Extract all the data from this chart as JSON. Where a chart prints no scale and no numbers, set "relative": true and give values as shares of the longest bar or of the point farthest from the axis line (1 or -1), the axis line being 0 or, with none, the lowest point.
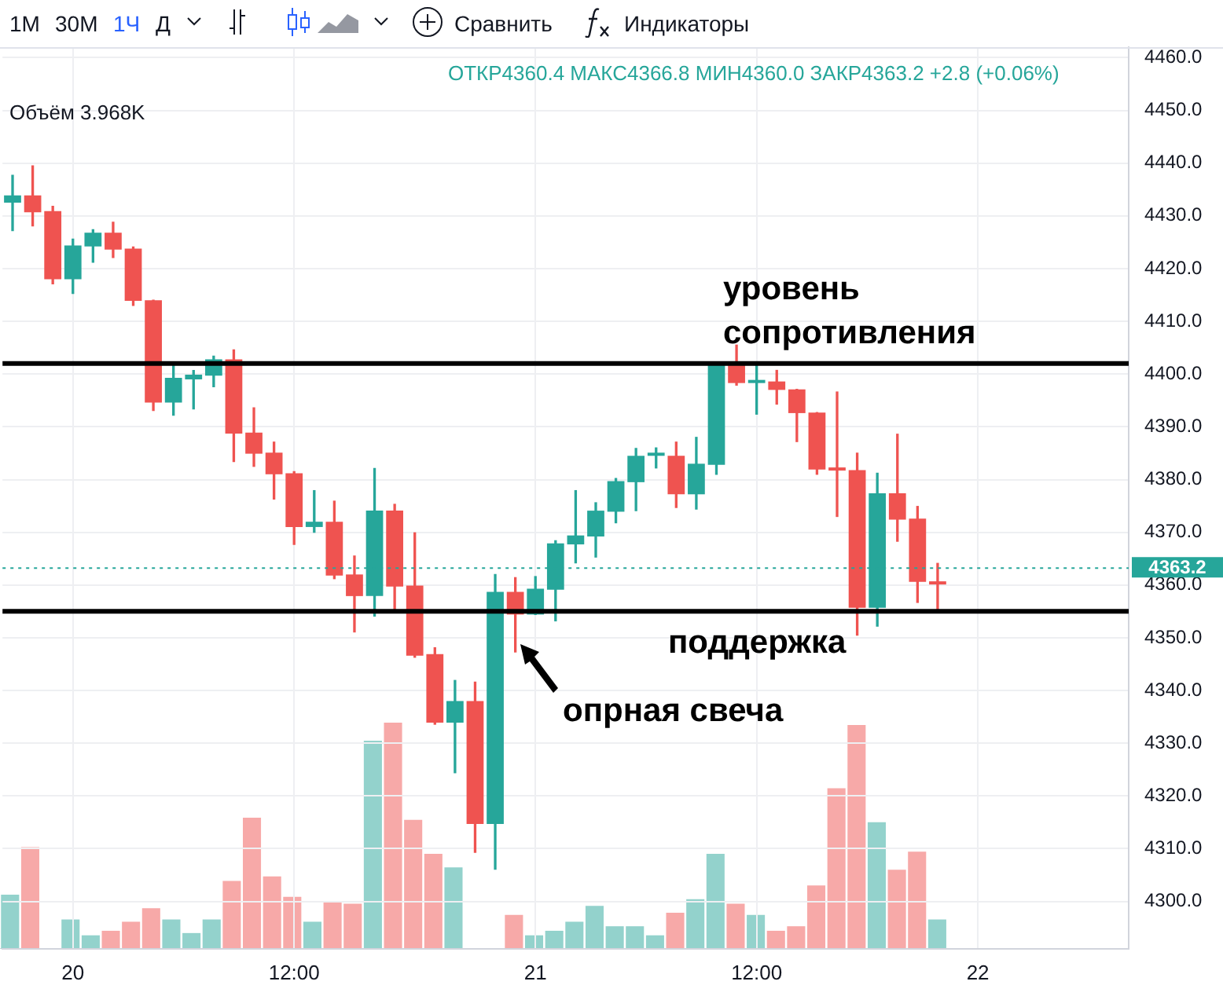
{
  "chart_data": [
    {
      "type": "candlestick",
      "subtitle": "ОТКР4360.4 МАКС4366.8 МИН4360.0 ЗАКР4363.2 +2.8 (+0.06%)",
      "categories": [
        null,
        null,
        null,
        "20",
        null,
        null,
        null,
        null,
        null,
        null,
        null,
        null,
        null,
        null,
        "12:00",
        null,
        null,
        null,
        null,
        null,
        null,
        null,
        null,
        null,
        null,
        null,
        "21",
        null,
        null,
        null,
        null,
        null,
        null,
        null,
        null,
        null,
        null,
        "12:00",
        null,
        null,
        null,
        null,
        null,
        null,
        null,
        null,
        null,
        null,
        "22",
        null,
        null,
        null,
        null,
        null,
        null,
        null
      ],
      "ohlc": [
        [
          4432.5,
          4437.7,
          4427.2,
          4433.9
        ],
        [
          4433.9,
          4439.5,
          4428.1,
          4430.7
        ],
        [
          4430.9,
          4431.8,
          4417.1,
          4418.0
        ],
        [
          4418.0,
          4425.6,
          4415.3,
          4424.4
        ],
        [
          4424.2,
          4427.4,
          4421.2,
          4426.8
        ],
        [
          4426.8,
          4428.8,
          4422.1,
          4423.6
        ],
        [
          4423.8,
          4424.1,
          4413.0,
          4413.9
        ],
        [
          4414.0,
          4414.0,
          4393.1,
          4394.6
        ],
        [
          4394.6,
          4402.2,
          4392.2,
          4399.3
        ],
        [
          4399.0,
          4400.7,
          4393.4,
          4399.9
        ],
        [
          4399.7,
          4403.4,
          4397.6,
          4402.8
        ],
        [
          4402.8,
          4404.6,
          4383.4,
          4388.7
        ],
        [
          4388.9,
          4393.6,
          4382.5,
          4384.9
        ],
        [
          4385.1,
          4387.1,
          4376.3,
          4381.0
        ],
        [
          4381.2,
          4381.5,
          4367.7,
          4371.0
        ],
        [
          4371.0,
          4377.9,
          4370.0,
          4372.0
        ],
        [
          4372.0,
          4375.9,
          4361.2,
          4361.8
        ],
        [
          4362.0,
          4365.5,
          4351.1,
          4357.9
        ],
        [
          4357.9,
          4382.1,
          4354.1,
          4374.1
        ],
        [
          4374.1,
          4375.3,
          4355.3,
          4359.7
        ],
        [
          4359.9,
          4369.9,
          4346.3,
          4346.6
        ],
        [
          4346.9,
          4348.1,
          4333.6,
          4333.9
        ],
        [
          4333.9,
          4341.9,
          4324.4,
          4338.0
        ],
        [
          4338.0,
          4341.6,
          4309.3,
          4314.7
        ],
        [
          4314.7,
          4362.0,
          4306.1,
          4358.7
        ],
        [
          4358.7,
          4361.4,
          4347.3,
          4354.4
        ],
        [
          4354.4,
          4361.6,
          4354.4,
          4359.3
        ],
        [
          4359.1,
          4368.4,
          4353.2,
          4367.9
        ],
        [
          4367.7,
          4377.9,
          4364.2,
          4369.4
        ],
        [
          4369.2,
          4375.6,
          4365.3,
          4374.1
        ],
        [
          4373.9,
          4380.2,
          4371.8,
          4379.7
        ],
        [
          4379.5,
          4385.9,
          4374.1,
          4384.5
        ],
        [
          4384.5,
          4386.0,
          4382.2,
          4384.6
        ],
        [
          4384.5,
          4387.1,
          4374.7,
          4377.2
        ],
        [
          4377.2,
          4388.0,
          4374.4,
          4383.0
        ],
        [
          4382.8,
          4402.0,
          4381.0,
          4401.7
        ],
        [
          4401.7,
          4405.5,
          4397.9,
          4398.3
        ],
        [
          4398.3,
          4401.7,
          4392.4,
          4398.6
        ],
        [
          4398.6,
          4400.7,
          4394.3,
          4397.0
        ],
        [
          4397.1,
          4397.1,
          4387.2,
          4392.6
        ],
        [
          4392.7,
          4392.7,
          4381.0,
          4381.9
        ],
        [
          4382.1,
          4396.6,
          4373.0,
          4381.7
        ],
        [
          4381.8,
          4385.0,
          4350.5,
          4355.7
        ],
        [
          4355.7,
          4381.2,
          4352.2,
          4377.4
        ],
        [
          4377.4,
          4388.6,
          4368.3,
          4372.4
        ],
        [
          4372.6,
          4374.9,
          4356.7,
          4360.6
        ],
        [
          4360.7,
          4364.1,
          4355.2,
          4360.1
        ],
        null,
        null,
        null,
        null,
        null,
        null,
        null,
        null,
        null
      ],
      "colors": [
        "#26a69a",
        "#ef5350",
        "#ef5350",
        "#26a69a",
        "#26a69a",
        "#ef5350",
        "#ef5350",
        "#ef5350",
        "#26a69a",
        "#26a69a",
        "#26a69a",
        "#ef5350",
        "#ef5350",
        "#ef5350",
        "#ef5350",
        "#26a69a",
        "#ef5350",
        "#ef5350",
        "#26a69a",
        "#ef5350",
        "#ef5350",
        "#ef5350",
        "#26a69a",
        "#ef5350",
        "#26a69a",
        "#ef5350",
        "#26a69a",
        "#26a69a",
        "#26a69a",
        "#26a69a",
        "#26a69a",
        "#26a69a",
        "#26a69a",
        "#ef5350",
        "#26a69a",
        "#26a69a",
        "#ef5350",
        "#26a69a",
        "#ef5350",
        "#ef5350",
        "#ef5350",
        "#ef5350",
        "#ef5350",
        "#26a69a",
        "#ef5350",
        "#ef5350",
        "#ef5350",
        null,
        null,
        null,
        null,
        null,
        null,
        null,
        null,
        null
      ],
      "ylim": [
        4291,
        4462
      ],
      "yticks": [
        {
          "value": 4300,
          "label": "4300.0"
        },
        {
          "value": 4310,
          "label": "4310.0"
        },
        {
          "value": 4320,
          "label": "4320.0"
        },
        {
          "value": 4330,
          "label": "4330.0"
        },
        {
          "value": 4340,
          "label": "4340.0"
        },
        {
          "value": 4350,
          "label": "4350.0"
        },
        {
          "value": 4360,
          "label": "4360.0"
        },
        {
          "value": 4370,
          "label": "4370.0"
        },
        {
          "value": 4380,
          "label": "4380.0"
        },
        {
          "value": 4390,
          "label": "4390.0"
        },
        {
          "value": 4400,
          "label": "4400.0"
        },
        {
          "value": 4410,
          "label": "4410.0"
        },
        {
          "value": 4420,
          "label": "4420.0"
        },
        {
          "value": 4430,
          "label": "4430.0"
        },
        {
          "value": 4440,
          "label": "4440.0"
        },
        {
          "value": 4450,
          "label": "4450.0"
        },
        {
          "value": 4460,
          "label": "4460.0"
        }
      ],
      "grid": true,
      "ref_lines": [
        {
          "axis": "y",
          "value": 4402,
          "label": "уровень сопротивления",
          "color": "#000000",
          "line_style": "solid"
        },
        {
          "axis": "y",
          "value": 4355,
          "label": "поддержка",
          "color": "#000000",
          "line_style": "solid"
        },
        {
          "axis": "y",
          "value": 4363.2,
          "label": "4363.2",
          "color": "#26a69a",
          "line_style": "dotted"
        }
      ],
      "annotations": [
        "1М",
        "30М",
        "1Ч",
        "Д",
        "Сравнить",
        "Индикаторы",
        "опрная свеча"
      ]
    },
    {
      "type": "bar",
      "title": "Объём 3.968K",
      "relative": true,
      "tick_labels": false,
      "categories": [
        null,
        null,
        null,
        null,
        null,
        null,
        null,
        null,
        null,
        null,
        null,
        null,
        null,
        null,
        null,
        null,
        null,
        null,
        null,
        null,
        null,
        null,
        null,
        null,
        null,
        null,
        null,
        null,
        null,
        null,
        null,
        null,
        null,
        null,
        null,
        null,
        null,
        null,
        null,
        null,
        null,
        null,
        null,
        null,
        null,
        null,
        null,
        null,
        null,
        null,
        null,
        null,
        null,
        null,
        null,
        null
      ],
      "values": [
        0.24,
        0.45,
        null,
        0.13,
        0.06,
        0.08,
        0.12,
        0.18,
        0.13,
        0.07,
        0.13,
        0.3,
        0.58,
        0.32,
        0.23,
        0.12,
        0.21,
        0.2,
        0.92,
        1,
        0.57,
        0.42,
        0.36,
        null,
        null,
        0.15,
        0.06,
        0.08,
        0.12,
        0.19,
        0.1,
        0.1,
        0.06,
        0.16,
        0.22,
        0.42,
        0.2,
        0.15,
        0.08,
        0.1,
        0.28,
        0.71,
        0.99,
        0.56,
        0.35,
        0.43,
        0.13,
        null,
        null,
        null,
        null,
        null,
        null,
        null,
        null,
        null
      ],
      "colors": [
        "#93d2cc",
        "#f7a9a8",
        "#f7a9a8",
        "#93d2cc",
        "#93d2cc",
        "#f7a9a8",
        "#f7a9a8",
        "#f7a9a8",
        "#93d2cc",
        "#93d2cc",
        "#93d2cc",
        "#f7a9a8",
        "#f7a9a8",
        "#f7a9a8",
        "#f7a9a8",
        "#93d2cc",
        "#f7a9a8",
        "#f7a9a8",
        "#93d2cc",
        "#f7a9a8",
        "#f7a9a8",
        "#f7a9a8",
        "#93d2cc",
        "#f7a9a8",
        "#93d2cc",
        "#f7a9a8",
        "#93d2cc",
        "#93d2cc",
        "#93d2cc",
        "#93d2cc",
        "#93d2cc",
        "#93d2cc",
        "#93d2cc",
        "#f7a9a8",
        "#93d2cc",
        "#93d2cc",
        "#f7a9a8",
        "#93d2cc",
        "#f7a9a8",
        "#f7a9a8",
        "#f7a9a8",
        "#f7a9a8",
        "#f7a9a8",
        "#93d2cc",
        "#f7a9a8",
        "#f7a9a8",
        "#93d2cc",
        null,
        null,
        null,
        null,
        null,
        null,
        null,
        null,
        null
      ]
    }
  ]
}
